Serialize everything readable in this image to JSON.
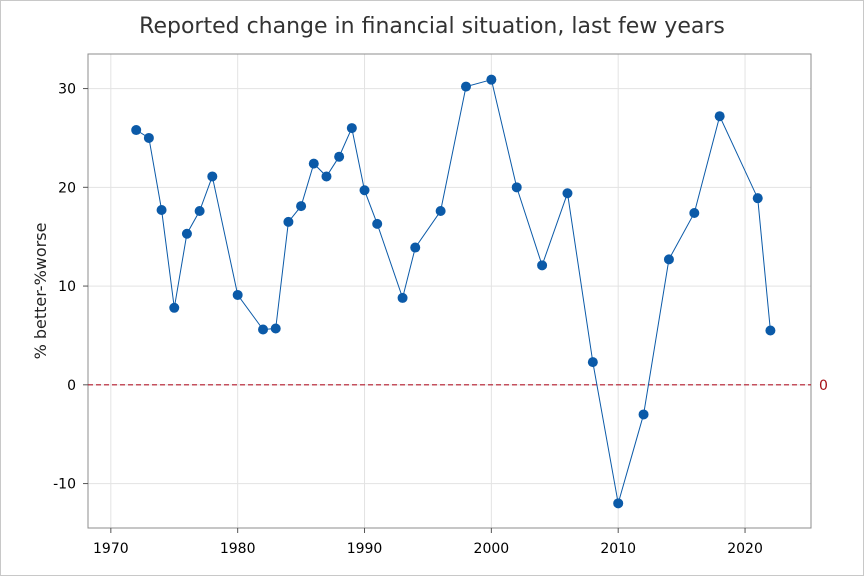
{
  "chart_data": {
    "type": "line",
    "title": "Reported change in financial situation, last few years",
    "xlabel": "",
    "ylabel": "% better-%worse",
    "xlim": [
      1968.2,
      2025.2
    ],
    "ylim": [
      -14.5,
      33.5
    ],
    "x_ticks": [
      1970,
      1980,
      1990,
      2000,
      2010,
      2020
    ],
    "y_ticks": [
      -10,
      0,
      10,
      20,
      30
    ],
    "grid": true,
    "reference_line": {
      "y": 0,
      "label": "0",
      "color": "#b2182b",
      "style": "dashed"
    },
    "series_color": "#0b5aa8",
    "marker_color": "#0b5aa8",
    "series": [
      {
        "x": [
          1972,
          1973,
          1974,
          1975,
          1976,
          1977,
          1978,
          1980,
          1982,
          1983,
          1984,
          1985,
          1986,
          1987,
          1988,
          1989,
          1990,
          1991,
          1993,
          1994,
          1996,
          1998,
          2000,
          2002,
          2004,
          2006,
          2008,
          2010,
          2012,
          2014,
          2016,
          2018,
          2021,
          2022
        ],
        "y": [
          25.8,
          25.0,
          17.7,
          7.8,
          15.3,
          17.6,
          21.1,
          9.1,
          5.6,
          5.7,
          16.5,
          18.1,
          22.4,
          21.1,
          23.1,
          26.0,
          19.7,
          16.3,
          8.8,
          13.9,
          17.6,
          30.2,
          30.9,
          20.0,
          12.1,
          19.4,
          2.3,
          -12.0,
          -3.0,
          12.7,
          17.4,
          27.2,
          18.9,
          5.5
        ]
      }
    ]
  }
}
